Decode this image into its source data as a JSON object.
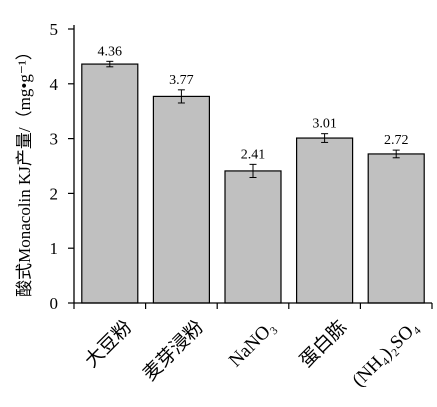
{
  "chart_data": {
    "type": "bar",
    "title": "",
    "xlabel": "",
    "ylabel": "酸式Monacolin KJ产量/（mg•g⁻¹）",
    "categories": [
      "大豆粉",
      "麦芽浸粉",
      "NaNO₃",
      "蛋白胨",
      "(NH₄)₂SO₄"
    ],
    "series": [
      {
        "values": [
          4.36,
          3.77,
          2.41,
          3.01,
          2.72
        ],
        "errors": [
          0.05,
          0.12,
          0.12,
          0.08,
          0.07
        ],
        "data_labels": [
          "4.36",
          "3.77",
          "2.41",
          "3.01",
          "2.72"
        ]
      }
    ],
    "ylim": [
      0,
      5
    ],
    "yticks": [
      0,
      1,
      2,
      3,
      4,
      5
    ],
    "ytick_labels": [
      "0",
      "1",
      "2",
      "3",
      "4",
      "5"
    ],
    "grid": false,
    "legend": "none",
    "colors": {
      "bar_fill": "#c0c0c0",
      "bar_edge": "#000000",
      "axis": "#000000"
    }
  }
}
